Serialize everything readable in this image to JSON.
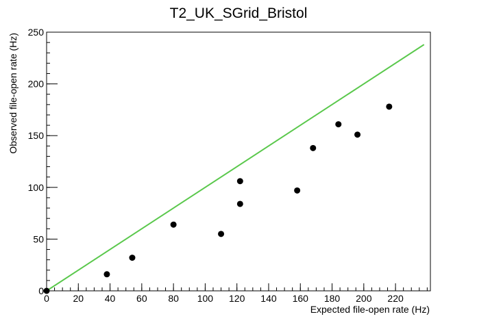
{
  "chart_data": {
    "type": "scatter",
    "title": "T2_UK_SGrid_Bristol",
    "x_label": "Expected file-open rate (Hz)",
    "y_label": "Observed file-open rate (Hz)",
    "xlim": [
      0,
      242
    ],
    "ylim": [
      0,
      250
    ],
    "xticks": [
      0,
      20,
      40,
      60,
      80,
      100,
      120,
      140,
      160,
      180,
      200,
      220
    ],
    "yticks": [
      0,
      50,
      100,
      150,
      200,
      250
    ],
    "series": [
      {
        "color": "#000000",
        "x": [
          0,
          38,
          54,
          80,
          110,
          122,
          122,
          158,
          168,
          184,
          196,
          216
        ],
        "values": [
          0,
          16,
          32,
          64,
          55,
          106,
          84,
          97,
          138,
          161,
          151,
          178
        ]
      }
    ],
    "line": {
      "color": "#5ac84c",
      "x": [
        0,
        238
      ],
      "values": [
        0,
        238
      ]
    }
  }
}
